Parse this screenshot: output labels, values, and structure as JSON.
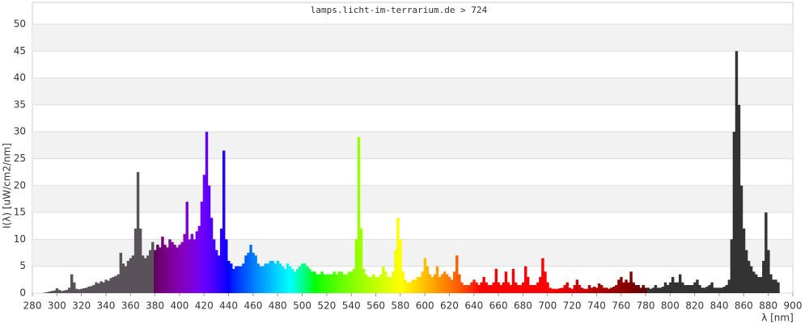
{
  "chart_data": {
    "type": "spectrum",
    "title": "lamps.licht-im-terrarium.de > 724",
    "x_label": "λ [nm]",
    "y_label": "I(λ) [uW/cm2/nm]",
    "color_by": "wavelength",
    "uv_color": "#5a525a",
    "ir_color": "#333333",
    "xlim": [
      280,
      900
    ],
    "ylim": [
      0,
      50
    ],
    "xticks": [
      280,
      300,
      320,
      340,
      360,
      380,
      400,
      420,
      440,
      460,
      480,
      500,
      520,
      540,
      560,
      580,
      600,
      620,
      640,
      660,
      680,
      700,
      720,
      740,
      760,
      780,
      800,
      820,
      840,
      860,
      880,
      900
    ],
    "yticks": [
      0,
      5,
      10,
      15,
      20,
      25,
      30,
      35,
      40,
      45,
      50
    ],
    "grid": true,
    "x": [
      290,
      292,
      294,
      296,
      298,
      300,
      302,
      304,
      306,
      308,
      310,
      312,
      314,
      316,
      318,
      320,
      322,
      324,
      326,
      328,
      330,
      332,
      334,
      336,
      338,
      340,
      342,
      344,
      346,
      348,
      350,
      352,
      354,
      356,
      358,
      360,
      362,
      364,
      366,
      368,
      370,
      372,
      374,
      376,
      378,
      380,
      382,
      384,
      386,
      388,
      390,
      392,
      394,
      396,
      398,
      400,
      402,
      404,
      406,
      408,
      410,
      412,
      414,
      416,
      418,
      420,
      422,
      424,
      426,
      428,
      430,
      432,
      434,
      436,
      438,
      440,
      442,
      444,
      446,
      448,
      450,
      452,
      454,
      456,
      458,
      460,
      462,
      464,
      466,
      468,
      470,
      472,
      474,
      476,
      478,
      480,
      482,
      484,
      486,
      488,
      490,
      492,
      494,
      496,
      498,
      500,
      502,
      504,
      506,
      508,
      510,
      512,
      514,
      516,
      518,
      520,
      522,
      524,
      526,
      528,
      530,
      532,
      534,
      536,
      538,
      540,
      542,
      544,
      546,
      548,
      550,
      552,
      554,
      556,
      558,
      560,
      562,
      564,
      566,
      568,
      570,
      572,
      574,
      576,
      578,
      580,
      582,
      584,
      586,
      588,
      590,
      592,
      594,
      596,
      598,
      600,
      602,
      604,
      606,
      608,
      610,
      612,
      614,
      616,
      618,
      620,
      622,
      624,
      626,
      628,
      630,
      632,
      634,
      636,
      638,
      640,
      642,
      644,
      646,
      648,
      650,
      652,
      654,
      656,
      658,
      660,
      662,
      664,
      666,
      668,
      670,
      672,
      674,
      676,
      678,
      680,
      682,
      684,
      686,
      688,
      690,
      692,
      694,
      696,
      698,
      700,
      702,
      704,
      706,
      708,
      710,
      712,
      714,
      716,
      718,
      720,
      722,
      724,
      726,
      728,
      730,
      732,
      734,
      736,
      738,
      740,
      742,
      744,
      746,
      748,
      750,
      752,
      754,
      756,
      758,
      760,
      762,
      764,
      766,
      768,
      770,
      772,
      774,
      776,
      778,
      780,
      782,
      784,
      786,
      788,
      790,
      792,
      794,
      796,
      798,
      800,
      802,
      804,
      806,
      808,
      810,
      812,
      814,
      816,
      818,
      820,
      822,
      824,
      826,
      828,
      830,
      832,
      834,
      836,
      838,
      840,
      842,
      844,
      846,
      848,
      850,
      852,
      854,
      856,
      858,
      860,
      862,
      864,
      866,
      868,
      870,
      872,
      874,
      876,
      878,
      880,
      882,
      884,
      886,
      888
    ],
    "values": [
      0.1,
      0.2,
      0.3,
      0.4,
      0.5,
      0.9,
      0.6,
      0.4,
      0.5,
      0.6,
      1.0,
      3.5,
      2.0,
      0.8,
      0.7,
      0.8,
      0.9,
      1.0,
      1.2,
      1.3,
      1.5,
      2.0,
      1.8,
      2.2,
      2.0,
      2.5,
      2.3,
      2.8,
      3.0,
      3.2,
      3.5,
      7.5,
      5.5,
      5.0,
      6.0,
      6.5,
      7.0,
      12.0,
      22.5,
      12.0,
      7.0,
      6.5,
      7.0,
      8.0,
      9.5,
      8.0,
      9.0,
      8.5,
      10.5,
      9.0,
      8.5,
      10.0,
      9.5,
      9.0,
      8.5,
      9.0,
      9.5,
      11.0,
      17.0,
      10.0,
      11.0,
      10.0,
      11.5,
      12.5,
      17.0,
      22.0,
      30.0,
      20.0,
      14.0,
      10.0,
      8.0,
      7.0,
      12.0,
      26.5,
      10.0,
      6.0,
      5.5,
      4.5,
      5.0,
      5.0,
      5.0,
      5.5,
      7.0,
      7.5,
      9.0,
      7.5,
      7.0,
      5.5,
      5.0,
      5.0,
      5.5,
      5.5,
      6.0,
      6.0,
      5.5,
      6.0,
      5.5,
      5.0,
      4.5,
      5.5,
      5.0,
      4.5,
      4.0,
      4.5,
      5.0,
      5.5,
      5.5,
      5.0,
      4.5,
      4.0,
      4.0,
      3.5,
      3.5,
      4.0,
      3.5,
      3.5,
      3.5,
      3.5,
      4.0,
      3.5,
      4.0,
      4.0,
      3.5,
      3.5,
      4.0,
      4.0,
      4.5,
      10.0,
      29.0,
      12.0,
      4.5,
      3.5,
      3.0,
      3.0,
      3.5,
      3.0,
      3.0,
      3.5,
      5.0,
      4.0,
      3.0,
      3.0,
      4.0,
      8.0,
      14.0,
      10.0,
      4.0,
      2.5,
      2.0,
      2.0,
      2.5,
      2.5,
      3.0,
      3.0,
      4.0,
      6.5,
      5.0,
      3.5,
      3.0,
      3.5,
      5.0,
      3.0,
      3.5,
      4.0,
      3.5,
      3.0,
      2.5,
      4.0,
      7.0,
      3.5,
      2.0,
      1.5,
      1.5,
      1.5,
      2.0,
      2.5,
      2.0,
      1.5,
      2.0,
      3.0,
      2.0,
      1.5,
      1.5,
      2.0,
      4.5,
      2.0,
      1.5,
      2.0,
      4.0,
      2.0,
      1.5,
      4.5,
      2.0,
      1.5,
      1.5,
      2.0,
      5.0,
      3.0,
      1.5,
      1.5,
      1.5,
      2.0,
      3.0,
      6.5,
      4.0,
      2.0,
      1.0,
      0.8,
      0.8,
      0.8,
      0.9,
      1.0,
      1.5,
      2.0,
      1.0,
      0.8,
      1.5,
      2.5,
      1.5,
      1.0,
      0.8,
      0.8,
      1.5,
      1.0,
      1.2,
      1.0,
      1.8,
      1.5,
      1.0,
      1.0,
      0.8,
      1.0,
      1.2,
      1.5,
      2.5,
      3.0,
      2.0,
      2.5,
      2.0,
      4.0,
      2.0,
      1.5,
      1.5,
      1.0,
      1.5,
      1.0,
      1.0,
      0.8,
      1.0,
      1.5,
      1.0,
      1.0,
      1.2,
      2.0,
      1.5,
      2.0,
      3.0,
      2.0,
      2.0,
      3.5,
      2.0,
      1.5,
      1.5,
      1.5,
      1.5,
      2.0,
      2.5,
      1.5,
      1.0,
      1.0,
      1.2,
      1.5,
      2.0,
      1.0,
      1.0,
      1.0,
      1.0,
      1.2,
      1.5,
      2.5,
      10.0,
      30.0,
      45.0,
      35.0,
      20.0,
      12.0,
      8.0,
      6.0,
      5.0,
      4.0,
      3.5,
      3.0,
      3.0,
      6.0,
      15.0,
      8.0,
      3.5,
      2.5,
      2.5,
      2.0
    ]
  }
}
